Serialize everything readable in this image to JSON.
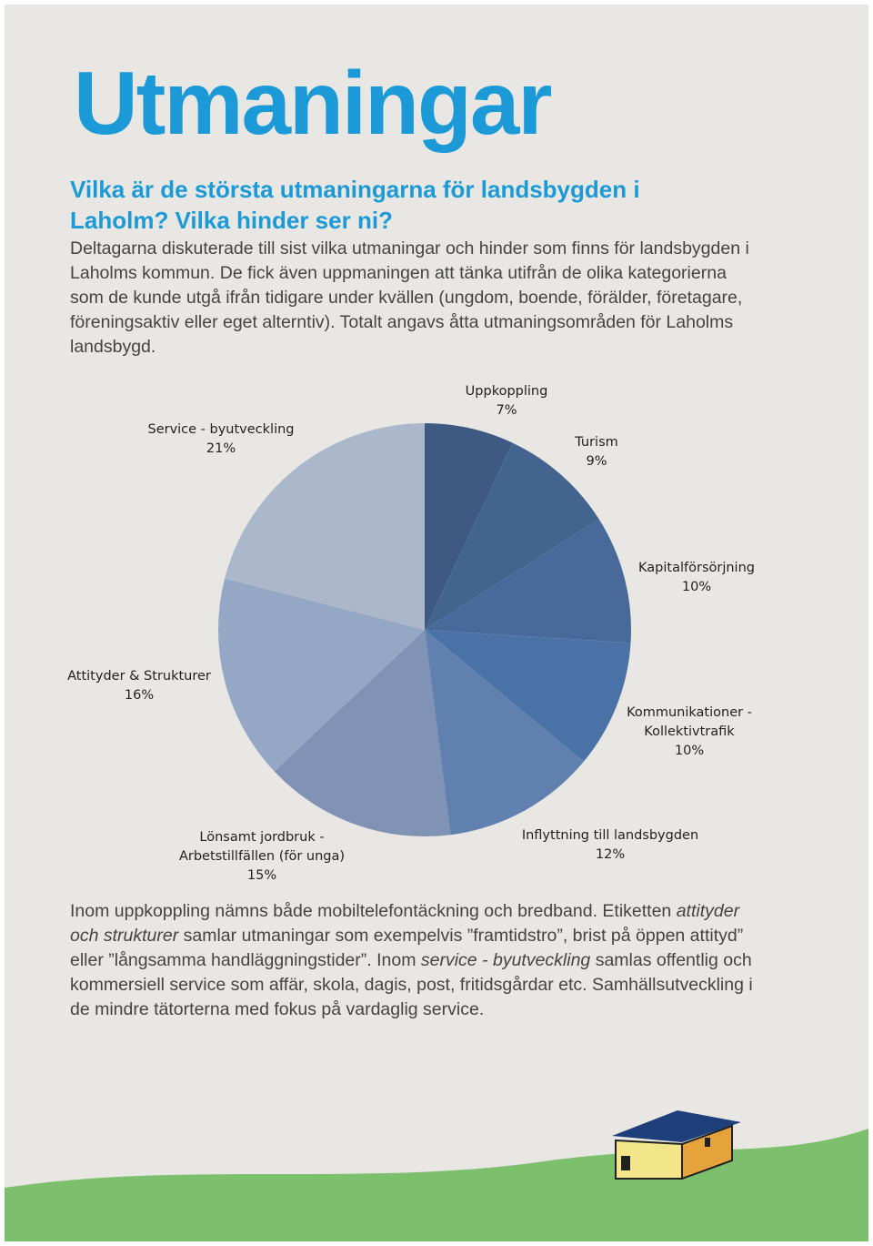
{
  "header": {
    "title": "Utmaningar",
    "question": "Vilka är de största utmaningarna för landsbygden i Laholm? Vilka hinder ser ni?"
  },
  "intro": "Deltagarna diskuterade till sist vilka utmaningar och hinder som finns för landsbygden i Laholms kommun. De fick även uppmaningen att tänka utifrån de olika kategorierna som de kunde utgå ifrån tidigare under kvällen (ungdom, boende, förälder, företagare, föreningsaktiv eller eget alterntiv). Totalt angavs åtta utmaningsområden för Laholms landsbygd.",
  "chart_data": {
    "type": "pie",
    "categories": [
      "Uppkoppling",
      "Turism",
      "Kapitalförsörjning",
      "Kommunikationer - Kollektivtrafik",
      "Inflyttning till landsbygden",
      "Lönsamt jordbruk - Arbetstillfällen (för unga)",
      "Attityder & Strukturer",
      "Service - byutveckling"
    ],
    "values": [
      7,
      9,
      10,
      10,
      12,
      15,
      16,
      21
    ],
    "value_labels": [
      "7%",
      "9%",
      "10%",
      "10%",
      "12%",
      "15%",
      "16%",
      "21%"
    ],
    "colors": [
      "#3e5a82",
      "#43648f",
      "#48699a",
      "#4a72a6",
      "#6080b0",
      "#8093b5",
      "#94a7c4",
      "#abb8cb"
    ]
  },
  "closing": [
    "Inom uppkoppling nämns både mobiltelefontäckning och bredband. Etiketten ",
    "attityder och strukturer",
    " samlar utmaningar som exempelvis ”framtidstro”, brist på öppen attityd” eller ”långsamma handläggningstider”. Inom ",
    "service - byutveckling",
    " samlas offentlig och kommersiell service som affär, skola, dagis, post, fritidsgårdar etc. Samhällsutveckling i de mindre tätorterna med fokus på vardaglig service."
  ]
}
